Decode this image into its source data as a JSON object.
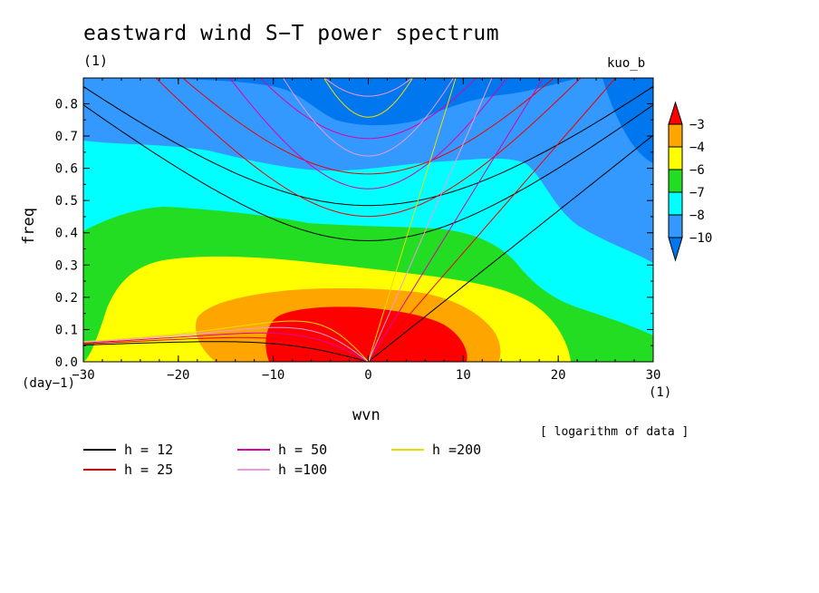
{
  "chart_data": {
    "type": "heatmap",
    "title": "eastward wind S−T power spectrum",
    "subtitle_left": "(1)",
    "subtitle_right": "kuo_b",
    "xlabel": "wvn",
    "ylabel": "freq",
    "x_unit": "(1)",
    "y_unit": "(day−1)",
    "note": "[ logarithm of data ]",
    "xlim": [
      -30,
      30
    ],
    "ylim": [
      0,
      0.88
    ],
    "x_ticks": [
      -30,
      -20,
      -10,
      0,
      10,
      20,
      30
    ],
    "x_tick_labels": [
      "−30",
      "−20",
      "−10",
      "0",
      "10",
      "20",
      "30"
    ],
    "y_ticks": [
      0,
      0.1,
      0.2,
      0.3,
      0.4,
      0.5,
      0.6,
      0.7,
      0.8
    ],
    "y_tick_labels": [
      "0.0",
      "0.1",
      "0.2",
      "0.3",
      "0.4",
      "0.5",
      "0.6",
      "0.7",
      "0.8"
    ],
    "colorbar": {
      "levels": [
        -10,
        -8,
        -7,
        -6,
        -4,
        -3
      ],
      "labels": [
        "−10",
        "−8",
        "−7",
        "−6",
        "−4",
        "−3"
      ],
      "colors": [
        "#0077ee",
        "#3399ff",
        "#00ffff",
        "#22dd22",
        "#ffff00",
        "#ffa500",
        "#ff0000"
      ]
    },
    "dispersion_curves": [
      {
        "label": "h = 12",
        "h": 12,
        "color": "#000000"
      },
      {
        "label": "h = 25",
        "h": 25,
        "color": "#ee0000"
      },
      {
        "label": "h = 50",
        "h": 50,
        "color": "#dd00aa"
      },
      {
        "label": "h =100",
        "h": 100,
        "color": "#ee99dd"
      },
      {
        "label": "h =200",
        "h": 200,
        "color": "#eedd00"
      }
    ]
  }
}
